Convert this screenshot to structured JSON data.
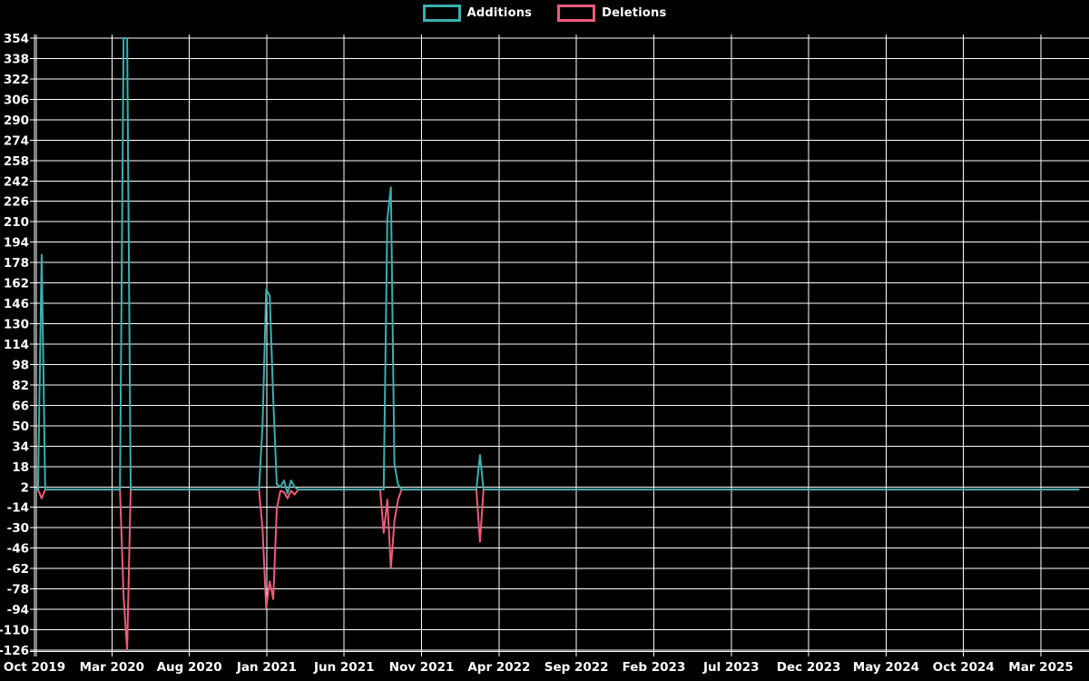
{
  "legend": {
    "additions_label": "Additions",
    "deletions_label": "Deletions"
  },
  "chart_data": {
    "type": "line",
    "title": "",
    "xlabel": "",
    "ylabel": "",
    "background_color": "#000000",
    "grid_color": "#ffffff",
    "text_color": "#ffffff",
    "legend_position": "top-center",
    "grid": true,
    "y_axis": {
      "min": -126,
      "max": 354,
      "step": 16,
      "ticks": [
        354,
        338,
        322,
        306,
        290,
        274,
        258,
        242,
        226,
        210,
        194,
        178,
        162,
        146,
        130,
        114,
        98,
        82,
        66,
        50,
        34,
        18,
        2,
        -14,
        -30,
        -46,
        -62,
        -78,
        -94,
        -110,
        -126
      ]
    },
    "x_axis": {
      "tick_labels": [
        "Oct 2019",
        "Mar 2020",
        "Aug 2020",
        "Jan 2021",
        "Jun 2021",
        "Nov 2021",
        "Apr 2022",
        "Sep 2022",
        "Feb 2023",
        "Jul 2023",
        "Dec 2023",
        "May 2024",
        "Oct 2024",
        "Mar 2025"
      ],
      "tick_months": [
        0,
        5,
        10,
        15,
        20,
        25,
        30,
        35,
        40,
        45,
        50,
        55,
        60,
        65
      ]
    },
    "weeks_total": 293,
    "series": [
      {
        "name": "Additions",
        "color": "#38b0af",
        "default_value": 0,
        "points_sparse": [
          [
            1,
            0
          ],
          [
            2,
            184
          ],
          [
            3,
            0
          ],
          [
            24,
            0
          ],
          [
            25,
            354
          ],
          [
            26,
            354
          ],
          [
            27,
            0
          ],
          [
            63,
            0
          ],
          [
            64,
            50
          ],
          [
            65,
            157
          ],
          [
            66,
            152
          ],
          [
            67,
            71
          ],
          [
            68,
            4
          ],
          [
            69,
            2
          ],
          [
            70,
            7
          ],
          [
            71,
            -3
          ],
          [
            72,
            7
          ],
          [
            73,
            2
          ],
          [
            74,
            0
          ],
          [
            98,
            0
          ],
          [
            99,
            212
          ],
          [
            100,
            237
          ],
          [
            101,
            20
          ],
          [
            102,
            4
          ],
          [
            103,
            0
          ],
          [
            124,
            0
          ],
          [
            125,
            27
          ],
          [
            126,
            0
          ]
        ]
      },
      {
        "name": "Deletions",
        "color": "#ef5b78",
        "default_value": 0,
        "points_sparse": [
          [
            1,
            0
          ],
          [
            2,
            -7
          ],
          [
            3,
            0
          ],
          [
            24,
            0
          ],
          [
            25,
            -84
          ],
          [
            26,
            -126
          ],
          [
            27,
            0
          ],
          [
            63,
            0
          ],
          [
            64,
            -31
          ],
          [
            65,
            -93
          ],
          [
            66,
            -72
          ],
          [
            67,
            -86
          ],
          [
            68,
            -15
          ],
          [
            69,
            -1
          ],
          [
            70,
            -2
          ],
          [
            71,
            -7
          ],
          [
            72,
            -1
          ],
          [
            73,
            -4
          ],
          [
            74,
            0
          ],
          [
            97,
            0
          ],
          [
            98,
            -34
          ],
          [
            99,
            -8
          ],
          [
            100,
            -62
          ],
          [
            101,
            -25
          ],
          [
            102,
            -8
          ],
          [
            103,
            0
          ],
          [
            124,
            0
          ],
          [
            125,
            -41
          ],
          [
            126,
            0
          ]
        ]
      }
    ]
  }
}
